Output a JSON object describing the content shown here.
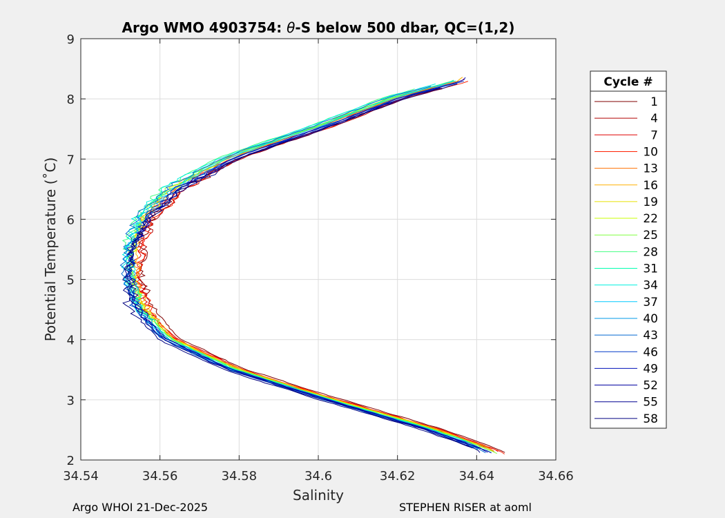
{
  "chart_data": {
    "type": "line",
    "title_prefix": "Argo WMO 4903754: ",
    "title_theta": "θ",
    "title_suffix": "-S below 500 dbar,  QC=(1,2)",
    "xlabel": "Salinity",
    "ylabel": "Potential Temperature (˚C)",
    "xlim": [
      34.54,
      34.66
    ],
    "ylim": [
      2,
      9
    ],
    "x_ticks": [
      34.54,
      34.56,
      34.58,
      34.6,
      34.62,
      34.64,
      34.66
    ],
    "x_tick_labels": [
      "34.54",
      "34.56",
      "34.58",
      "34.6",
      "34.62",
      "34.64",
      "34.66"
    ],
    "y_ticks": [
      2,
      3,
      4,
      5,
      6,
      7,
      8,
      9
    ],
    "y_tick_labels": [
      "2",
      "3",
      "4",
      "5",
      "6",
      "7",
      "8",
      "9"
    ],
    "grid": true,
    "legend_title": "Cycle #",
    "legend_position": "right",
    "series": [
      {
        "name": "1",
        "color": "#800000"
      },
      {
        "name": "4",
        "color": "#b00000"
      },
      {
        "name": "7",
        "color": "#e00000"
      },
      {
        "name": "10",
        "color": "#ff2000"
      },
      {
        "name": "13",
        "color": "#ff7000"
      },
      {
        "name": "16",
        "color": "#ffb000"
      },
      {
        "name": "19",
        "color": "#e8e000"
      },
      {
        "name": "22",
        "color": "#c8ff00"
      },
      {
        "name": "25",
        "color": "#80ff40"
      },
      {
        "name": "28",
        "color": "#40ff80"
      },
      {
        "name": "31",
        "color": "#00ffb0"
      },
      {
        "name": "34",
        "color": "#00f0e0"
      },
      {
        "name": "37",
        "color": "#00c8ff"
      },
      {
        "name": "40",
        "color": "#0098e8"
      },
      {
        "name": "43",
        "color": "#0068d0"
      },
      {
        "name": "46",
        "color": "#0038c8"
      },
      {
        "name": "49",
        "color": "#0010b8"
      },
      {
        "name": "52",
        "color": "#0000a0"
      },
      {
        "name": "55",
        "color": "#000090"
      },
      {
        "name": "58",
        "color": "#000080"
      }
    ],
    "profile_shape": [
      {
        "t": 2.1,
        "s": 34.645
      },
      {
        "t": 2.5,
        "s": 34.628
      },
      {
        "t": 3.0,
        "s": 34.602
      },
      {
        "t": 3.5,
        "s": 34.578
      },
      {
        "t": 4.0,
        "s": 34.562
      },
      {
        "t": 4.5,
        "s": 34.555
      },
      {
        "t": 5.0,
        "s": 34.553
      },
      {
        "t": 5.5,
        "s": 34.553
      },
      {
        "t": 6.0,
        "s": 34.556
      },
      {
        "t": 6.5,
        "s": 34.564
      },
      {
        "t": 7.0,
        "s": 34.578
      },
      {
        "t": 7.5,
        "s": 34.6
      },
      {
        "t": 8.0,
        "s": 34.62
      },
      {
        "t": 8.3,
        "s": 34.637
      }
    ]
  },
  "footer": {
    "left": "Argo WHOI 21-Dec-2025",
    "right": "STEPHEN RISER at aoml"
  }
}
